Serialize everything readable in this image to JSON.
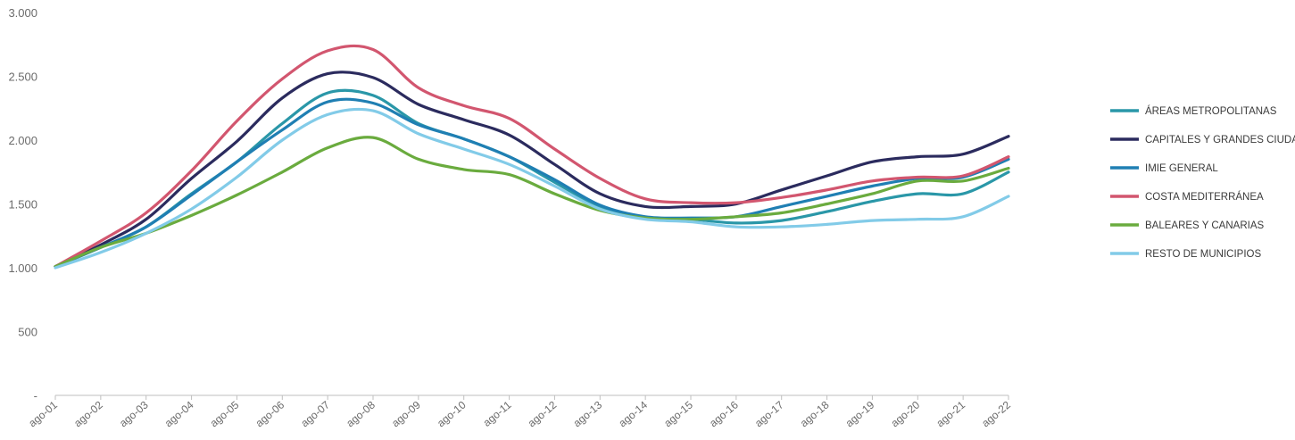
{
  "chart_data": {
    "type": "line",
    "title": "",
    "xlabel": "",
    "ylabel": "",
    "ylim": [
      0,
      3000
    ],
    "y_ticks": [
      {
        "value": 0,
        "label": "-"
      },
      {
        "value": 500,
        "label": "500"
      },
      {
        "value": 1000,
        "label": "1.000"
      },
      {
        "value": 1500,
        "label": "1.500"
      },
      {
        "value": 2000,
        "label": "2.000"
      },
      {
        "value": 2500,
        "label": "2.500"
      },
      {
        "value": 3000,
        "label": "3.000"
      }
    ],
    "categories": [
      "ago-01",
      "ago-02",
      "ago-03",
      "ago-04",
      "ago-05",
      "ago-06",
      "ago-07",
      "ago-08",
      "ago-09",
      "ago-10",
      "ago-11",
      "ago-12",
      "ago-13",
      "ago-14",
      "ago-15",
      "ago-16",
      "ago-17",
      "ago-18",
      "ago-19",
      "ago-20",
      "ago-21",
      "ago-22"
    ],
    "grid": false,
    "legend_position": "right",
    "series": [
      {
        "name": "ÁREAS METROPOLITANAS",
        "color": "#2a97a8",
        "values": [
          1010,
          1160,
          1320,
          1580,
          1830,
          2130,
          2370,
          2350,
          2130,
          2010,
          1870,
          1670,
          1480,
          1390,
          1380,
          1350,
          1370,
          1440,
          1520,
          1580,
          1580,
          1750
        ]
      },
      {
        "name": "CAPITALES Y GRANDES CIUDADES",
        "color": "#2b2b5e",
        "values": [
          1010,
          1180,
          1380,
          1700,
          1990,
          2330,
          2520,
          2490,
          2280,
          2160,
          2040,
          1810,
          1580,
          1480,
          1480,
          1500,
          1610,
          1720,
          1830,
          1870,
          1890,
          2030
        ]
      },
      {
        "name": "IMIE GENERAL",
        "color": "#1f7fb3",
        "values": [
          1010,
          1160,
          1320,
          1570,
          1830,
          2080,
          2300,
          2290,
          2120,
          2010,
          1870,
          1690,
          1490,
          1400,
          1390,
          1400,
          1480,
          1560,
          1640,
          1700,
          1710,
          1850
        ]
      },
      {
        "name": "COSTA MEDITERRÁNEA",
        "color": "#d2566f",
        "values": [
          1010,
          1210,
          1430,
          1760,
          2150,
          2480,
          2700,
          2710,
          2410,
          2270,
          2170,
          1930,
          1700,
          1540,
          1510,
          1510,
          1550,
          1610,
          1680,
          1710,
          1720,
          1870
        ]
      },
      {
        "name": "BALEARES Y CANARIAS",
        "color": "#6aab3e",
        "values": [
          1010,
          1160,
          1270,
          1410,
          1570,
          1750,
          1940,
          2020,
          1850,
          1770,
          1730,
          1580,
          1450,
          1390,
          1380,
          1400,
          1430,
          1500,
          1580,
          1680,
          1680,
          1780
        ]
      },
      {
        "name": "RESTO DE MUNICIPIOS",
        "color": "#82cbe8",
        "values": [
          1000,
          1120,
          1270,
          1460,
          1710,
          2000,
          2200,
          2230,
          2050,
          1930,
          1810,
          1640,
          1460,
          1380,
          1360,
          1320,
          1320,
          1340,
          1370,
          1380,
          1400,
          1560
        ]
      }
    ]
  }
}
